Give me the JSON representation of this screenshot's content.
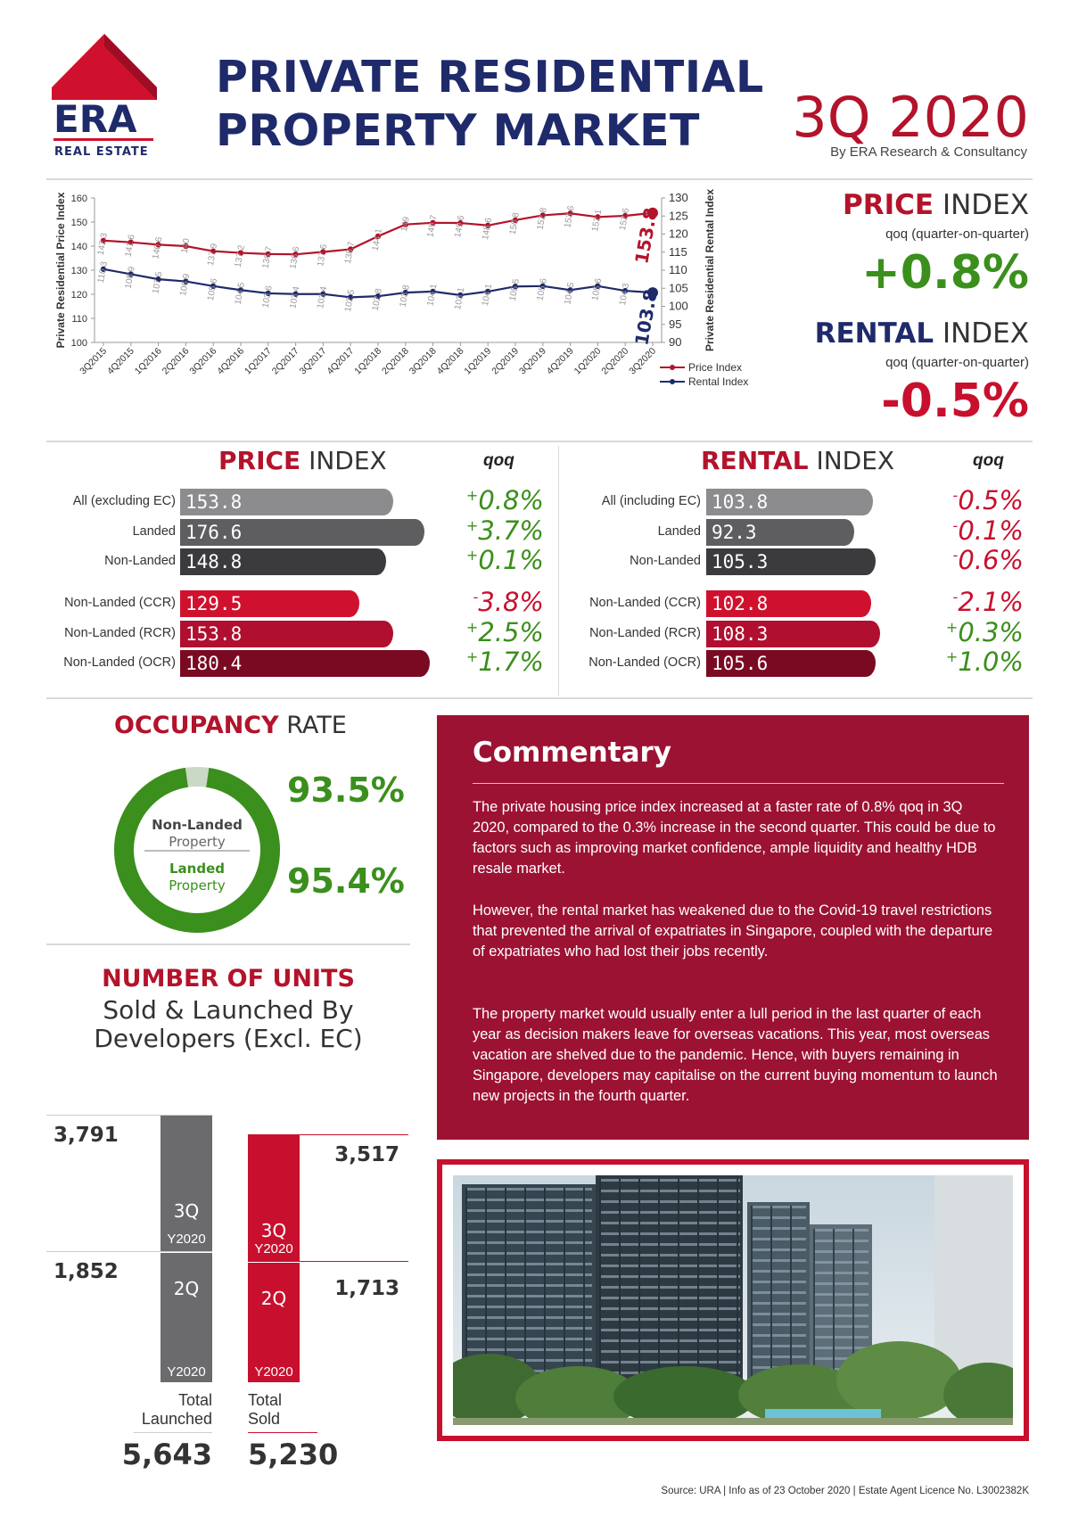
{
  "header": {
    "logo_text": "ERA",
    "logo_subtext": "REAL ESTATE",
    "title_line1": "PRIVATE RESIDENTIAL",
    "title_line2": "PROPERTY MARKET",
    "quarter": "3Q 2020",
    "byline": "By ERA Research & Consultancy"
  },
  "colors": {
    "navy": "#1f2a6b",
    "red": "#b3132b",
    "green": "#3b8f1c",
    "grey_bar_1": "#8c8c8f",
    "grey_bar_2": "#5e5e61",
    "grey_bar_3": "#3b3b3e",
    "red_bar_1": "#d0112e",
    "red_bar_2": "#b00f2f",
    "red_bar_3": "#7a0a22",
    "commentary_bg": "#9c1233"
  },
  "chart_data": [
    {
      "type": "line",
      "x": [
        "3Q2015",
        "4Q2015",
        "1Q2016",
        "2Q2016",
        "3Q2016",
        "4Q2016",
        "1Q2017",
        "2Q2017",
        "3Q2017",
        "4Q2017",
        "1Q2018",
        "2Q2018",
        "3Q2018",
        "4Q2018",
        "1Q2019",
        "2Q2019",
        "3Q2019",
        "4Q2019",
        "1Q2020",
        "2Q2020",
        "3Q2020"
      ],
      "series": [
        {
          "name": "Price Index",
          "axis": "left",
          "color": "#b3132b",
          "values": [
            142.3,
            141.6,
            140.6,
            140,
            137.9,
            137.2,
            136.7,
            136.6,
            137.6,
            138.7,
            144.1,
            149,
            149.7,
            149.6,
            148.6,
            150.8,
            152.8,
            153.6,
            152.1,
            152.6,
            153.8
          ],
          "labels": [
            "142.3",
            "141.6",
            "140.6",
            "140",
            "137.9",
            "137.2",
            "136.7",
            "136.6",
            "137.6",
            "138.7",
            "144.1",
            "149",
            "149.7",
            "149.6",
            "148.6",
            "150.8",
            "152.8",
            "153.6",
            "152.1",
            "152.6",
            "153.8"
          ]
        },
        {
          "name": "Rental Index",
          "axis": "right",
          "color": "#1f2a6b",
          "values": [
            110.3,
            108.9,
            107.5,
            106.9,
            105.6,
            104.5,
            103.6,
            103.4,
            103.4,
            102.5,
            102.8,
            103.8,
            104.1,
            103.1,
            104.1,
            105.5,
            105.6,
            104.5,
            105.6,
            104.3,
            103.8
          ],
          "labels": [
            "110.3",
            "108.9",
            "107.5",
            "106.9",
            "105.6",
            "104.5",
            "103.6",
            "103.4",
            "103.4",
            "102.5",
            "102.8",
            "103.8",
            "104.1",
            "103.1",
            "104.1",
            "105.5",
            "105.6",
            "104.5",
            "105.6",
            "104.3",
            "103.8"
          ]
        }
      ],
      "ylabel": "Private Residential Price Index",
      "y2label": "Private Residential Rental Index",
      "ylim": [
        100,
        160
      ],
      "yticks": [
        "100",
        "110",
        "120",
        "130",
        "140",
        "150",
        "160"
      ],
      "y2lim": [
        90,
        130
      ],
      "y2ticks": [
        "90",
        "95",
        "100",
        "105",
        "110",
        "115",
        "120",
        "125",
        "130"
      ],
      "grid": false,
      "legend": "bottom-right",
      "end_label_price": "153.8",
      "end_label_rental": "103.8"
    },
    {
      "type": "bar",
      "title_strong": "PRICE",
      "title_rest": " INDEX",
      "qoq_header": "qoq",
      "rows": [
        {
          "label": "All (excluding EC)",
          "value": 153.8,
          "value_text": "153.8",
          "qoq_sign": "+",
          "qoq": "0.8%",
          "group": "grey",
          "color": "#8c8c8f"
        },
        {
          "label": "Landed",
          "value": 176.6,
          "value_text": "176.6",
          "qoq_sign": "+",
          "qoq": "3.7%",
          "group": "grey",
          "color": "#5e5e61"
        },
        {
          "label": "Non-Landed",
          "value": 148.8,
          "value_text": "148.8",
          "qoq_sign": "+",
          "qoq": "0.1%",
          "group": "grey",
          "color": "#3b3b3e"
        },
        {
          "label": "Non-Landed (CCR)",
          "value": 129.5,
          "value_text": "129.5",
          "qoq_sign": "-",
          "qoq": "3.8%",
          "group": "red",
          "color": "#d0112e"
        },
        {
          "label": "Non-Landed (RCR)",
          "value": 153.8,
          "value_text": "153.8",
          "qoq_sign": "+",
          "qoq": "2.5%",
          "group": "red",
          "color": "#b00f2f"
        },
        {
          "label": "Non-Landed (OCR)",
          "value": 180.4,
          "value_text": "180.4",
          "qoq_sign": "+",
          "qoq": "1.7%",
          "group": "red",
          "color": "#7a0a22"
        }
      ]
    },
    {
      "type": "bar",
      "title_strong": "RENTAL",
      "title_rest": " INDEX",
      "qoq_header": "qoq",
      "rows": [
        {
          "label": "All (including EC)",
          "value": 103.8,
          "value_text": "103.8",
          "qoq_sign": "-",
          "qoq": "0.5%",
          "group": "grey",
          "color": "#8c8c8f"
        },
        {
          "label": "Landed",
          "value": 92.3,
          "value_text": "92.3",
          "qoq_sign": "-",
          "qoq": "0.1%",
          "group": "grey",
          "color": "#5e5e61"
        },
        {
          "label": "Non-Landed",
          "value": 105.3,
          "value_text": "105.3",
          "qoq_sign": "-",
          "qoq": "0.6%",
          "group": "grey",
          "color": "#3b3b3e"
        },
        {
          "label": "Non-Landed (CCR)",
          "value": 102.8,
          "value_text": "102.8",
          "qoq_sign": "-",
          "qoq": "2.1%",
          "group": "red",
          "color": "#d0112e"
        },
        {
          "label": "Non-Landed (RCR)",
          "value": 108.3,
          "value_text": "108.3",
          "qoq_sign": "+",
          "qoq": "0.3%",
          "group": "red",
          "color": "#b00f2f"
        },
        {
          "label": "Non-Landed (OCR)",
          "value": 105.6,
          "value_text": "105.6",
          "qoq_sign": "+",
          "qoq": "1.0%",
          "group": "red",
          "color": "#7a0a22"
        }
      ]
    },
    {
      "type": "pie",
      "title_strong": "OCCUPANCY",
      "title_rest": " RATE",
      "rings": [
        {
          "name": "Non-Landed",
          "name2": "Property",
          "value": 93.5,
          "value_text": "93.5%"
        },
        {
          "name": "Landed",
          "name2": "Property",
          "value": 95.4,
          "value_text": "95.4%"
        }
      ]
    },
    {
      "type": "bar",
      "title": "NUMBER OF UNITS",
      "subtitle_line1": "Sold & Launched By",
      "subtitle_line2": "Developers (Excl. EC)",
      "categories": [
        "Total Launched",
        "Total Sold"
      ],
      "series": [
        {
          "name": "2Q",
          "year": "Y2020",
          "values": [
            1852,
            1713
          ],
          "labels": [
            "1,852",
            "1,713"
          ]
        },
        {
          "name": "3Q",
          "year": "Y2020",
          "values": [
            3791,
            3517
          ],
          "labels": [
            "3,791",
            "3,517"
          ]
        }
      ],
      "totals": [
        "5,643",
        "5,230"
      ],
      "total_labels": [
        [
          "Total",
          "Launched"
        ],
        [
          "Total",
          "Sold"
        ]
      ]
    }
  ],
  "kpi": {
    "price_strong": "PRICE",
    "price_rest": " INDEX",
    "price_sub": "qoq (quarter-on-quarter)",
    "price_val": "+0.8%",
    "rental_strong": "RENTAL",
    "rental_rest": " INDEX",
    "rental_sub": "qoq (quarter-on-quarter)",
    "rental_val": "-0.5%"
  },
  "commentary": {
    "title": "Commentary",
    "p1": "The private housing price index increased at a faster rate of 0.8% qoq in 3Q 2020, compared to the 0.3% increase in the second quarter. This could be due to factors such as improving market confidence, ample liquidity and healthy HDB resale market.",
    "p2": "However, the rental market has weakened due to the Covid-19 travel restrictions that prevented the arrival of expatriates in Singapore, coupled with the departure of expatriates who had lost their jobs recently.",
    "p3": "The property market would usually enter a lull period in the last quarter of each year as decision makers leave for overseas vacations. This year, most overseas vacation are shelved due to the pandemic. Hence, with buyers remaining in Singapore, developers may capitalise on the current buying momentum to launch new projects in the fourth quarter."
  },
  "footer": {
    "source": "Source: URA | Info as of 23 October 2020 | Estate Agent Licence No. L3002382K"
  }
}
